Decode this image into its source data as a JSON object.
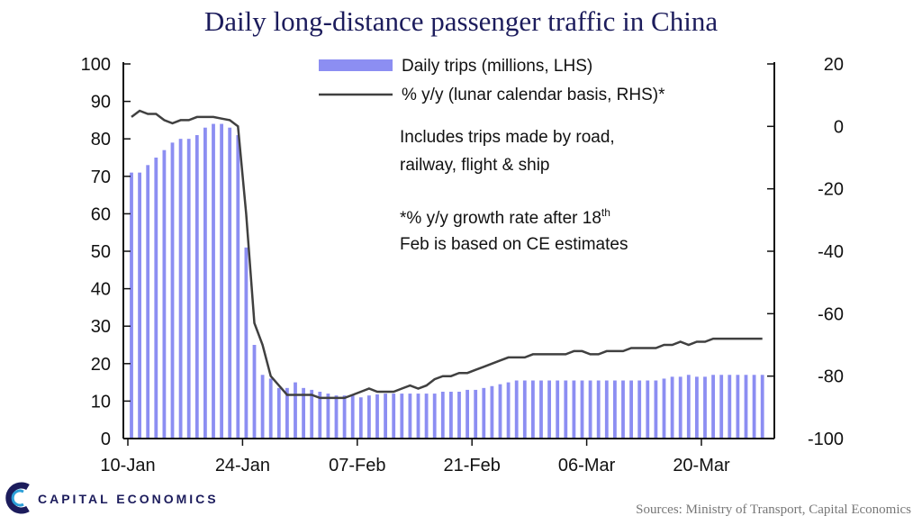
{
  "chart_data": {
    "type": "bar",
    "title": "Daily long-distance passenger traffic in China",
    "notes": [
      "Includes  trips made by road,",
      "railway,  flight  & ship"
    ],
    "growth_note": {
      "line1_prefix": "*% y/y growth  rate after 18",
      "superscript": "th",
      "line2": "Feb  is based on  CE estimates"
    },
    "source": "Sources: Ministry of Transport, Capital Economics",
    "x_ticks": [
      "10-Jan",
      "24-Jan",
      "07-Feb",
      "21-Feb",
      "06-Mar",
      "20-Mar"
    ],
    "x_tick_days": [
      0,
      14,
      28,
      42,
      56,
      70
    ],
    "y_left": {
      "ticks": [
        "0",
        "10",
        "20",
        "30",
        "40",
        "50",
        "60",
        "70",
        "80",
        "90",
        "100"
      ],
      "range": [
        0,
        100
      ]
    },
    "y_right": {
      "ticks": [
        "-100",
        "-80",
        "-60",
        "-40",
        "-20",
        "0",
        "20"
      ],
      "range": [
        -100,
        20
      ]
    },
    "legend_placement": "top-center",
    "series": [
      {
        "name": "Daily trips (millions, LHS)",
        "type": "bar",
        "axis": "left",
        "color": "#8c8ef2",
        "values": [
          71,
          71,
          73,
          75,
          77,
          79,
          80,
          80,
          81,
          83,
          84,
          84,
          83,
          81,
          51,
          25,
          17,
          16,
          13.5,
          13.5,
          15,
          13.5,
          13,
          12.5,
          12,
          11.5,
          11.5,
          11.5,
          11,
          11.5,
          11.8,
          12,
          12,
          12,
          12,
          12,
          12,
          12,
          12.5,
          12.5,
          12.5,
          13,
          13,
          13.5,
          14,
          14.5,
          15,
          15.5,
          15.5,
          15.5,
          15.5,
          15.5,
          15.5,
          15.5,
          15.5,
          15.5,
          15.5,
          15.5,
          15.5,
          15.5,
          15.5,
          15.5,
          15.5,
          15.5,
          15.5,
          16,
          16.5,
          16.5,
          17,
          16.5,
          16.5,
          17,
          17,
          17,
          17,
          17,
          17,
          17
        ]
      },
      {
        "name": "% y/y (lunar calendar basis, RHS)*",
        "type": "line",
        "axis": "right",
        "color": "#404040",
        "values": [
          3,
          5,
          4,
          4,
          2,
          1,
          2,
          2,
          3,
          3,
          3,
          2.5,
          2,
          0,
          -28,
          -63,
          -70,
          -80,
          -83,
          -86,
          -86,
          -86,
          -86,
          -87,
          -87,
          -87,
          -87,
          -86,
          -85,
          -84,
          -85,
          -85,
          -85,
          -84,
          -83,
          -84,
          -83,
          -81,
          -80,
          -80,
          -79,
          -79,
          -78,
          -77,
          -76,
          -75,
          -74,
          -74,
          -74,
          -73,
          -73,
          -73,
          -73,
          -73,
          -72,
          -72,
          -73,
          -73,
          -72,
          -72,
          -72,
          -71,
          -71,
          -71,
          -71,
          -70,
          -70,
          -69,
          -70,
          -69,
          -69,
          -68,
          -68,
          -68,
          -68,
          -68,
          -68,
          -68
        ]
      }
    ]
  },
  "brand": {
    "name": "CAPITAL ECONOMICS",
    "colors": {
      "primary": "#1c1c5c",
      "accent": "#2b9fd8"
    }
  }
}
